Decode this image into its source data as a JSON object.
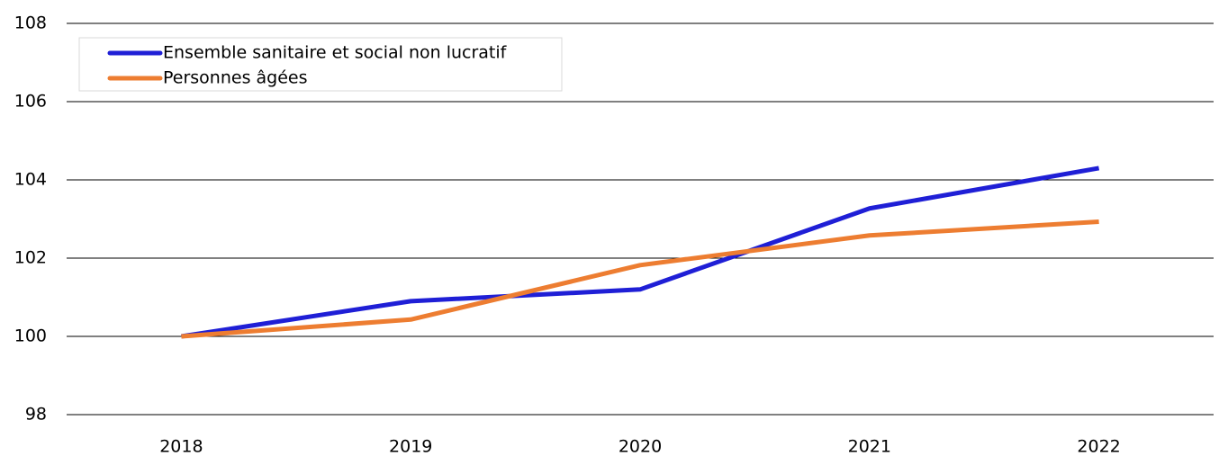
{
  "chart_data": {
    "type": "line",
    "categories": [
      "2018",
      "2019",
      "2020",
      "2021",
      "2022"
    ],
    "series": [
      {
        "name": "Ensemble sanitaire et social non lucratif",
        "color": "#1f1fd6",
        "values": [
          100,
          100.9,
          101.2,
          103.27,
          104.3
        ]
      },
      {
        "name": "Personnes âgées",
        "color": "#ed7d31",
        "values": [
          100,
          100.43,
          101.82,
          102.58,
          102.93
        ]
      }
    ],
    "ylim": [
      98,
      108
    ],
    "yticks": [
      98,
      100,
      102,
      104,
      106,
      108
    ],
    "grid": true,
    "legend": "upper left"
  }
}
